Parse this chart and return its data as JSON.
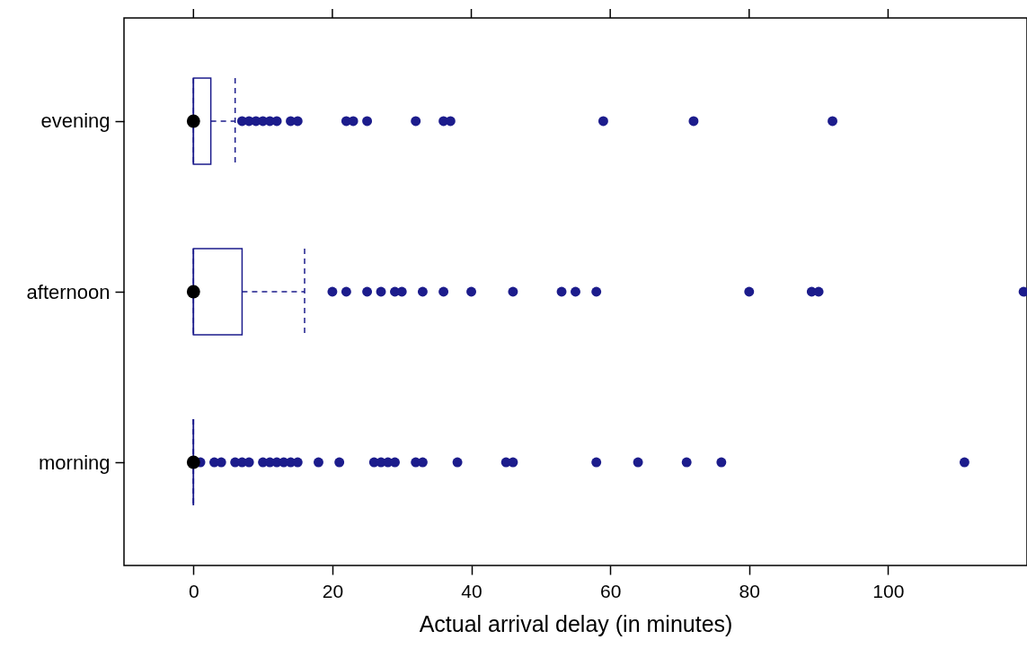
{
  "chart_data": {
    "type": "box",
    "orientation": "horizontal",
    "xlabel": "Actual arrival delay (in minutes)",
    "categories": [
      "evening",
      "afternoon",
      "morning"
    ],
    "xlim": [
      -10,
      120
    ],
    "xticks": [
      0,
      20,
      40,
      60,
      80,
      100
    ],
    "series": [
      {
        "color": "#1c1c8c",
        "line_style": "dashed",
        "boxes": [
          {
            "low": 0,
            "q1": 0,
            "median": 0,
            "q3": 2.5,
            "high": 6,
            "outliers": [
              7,
              8,
              9,
              10,
              11,
              12,
              14,
              15,
              22,
              23,
              25,
              32,
              36,
              37,
              59,
              72,
              92
            ]
          },
          {
            "low": 0,
            "q1": 0,
            "median": 0,
            "q3": 7,
            "high": 16,
            "outliers": [
              20,
              22,
              25,
              27,
              29,
              30,
              33,
              36,
              40,
              46,
              53,
              55,
              58,
              80,
              89,
              90,
              119.5
            ]
          },
          {
            "low": 0,
            "q1": 0,
            "median": 0,
            "q3": 0,
            "high": 0,
            "outliers": [
              1,
              3,
              4,
              6,
              7,
              8,
              10,
              11,
              12,
              13,
              14,
              15,
              18,
              21,
              26,
              27,
              28,
              29,
              32,
              33,
              38,
              45,
              46,
              58,
              64,
              71,
              76,
              111
            ]
          }
        ]
      },
      {
        "type": "scatter",
        "color": "#000000",
        "x": [
          "evening",
          "afternoon",
          "morning"
        ],
        "values": [
          0,
          0,
          0
        ]
      }
    ]
  }
}
